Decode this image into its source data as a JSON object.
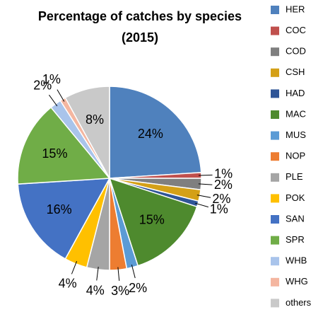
{
  "chart_data": {
    "type": "pie",
    "title": "Percentage of catches by species (2015)",
    "categories": [
      "HER",
      "COC",
      "COD",
      "CSH",
      "HAD",
      "MAC",
      "MUS",
      "NOP",
      "PLE",
      "POK",
      "SAN",
      "SPR",
      "WHB",
      "WHG",
      "others"
    ],
    "values": [
      24,
      1,
      2,
      2,
      1,
      15,
      2,
      3,
      4,
      4,
      16,
      15,
      2,
      1,
      8
    ],
    "value_labels": [
      "24%",
      "1%",
      "2%",
      "2%",
      "1%",
      "15%",
      "2%",
      "3%",
      "4%",
      "4%",
      "16%",
      "15%",
      "2%",
      "1%",
      "8%"
    ],
    "colors": [
      "#4f81bd",
      "#c0504d",
      "#7f7f7f",
      "#d4a017",
      "#2f5597",
      "#4e8a2e",
      "#5b9bd5",
      "#ed7d31",
      "#a5a5a5",
      "#ffc000",
      "#4472c4",
      "#70ad47",
      "#a9c4eb",
      "#f4b6a0",
      "#c9c9c9"
    ],
    "legend": "right"
  }
}
